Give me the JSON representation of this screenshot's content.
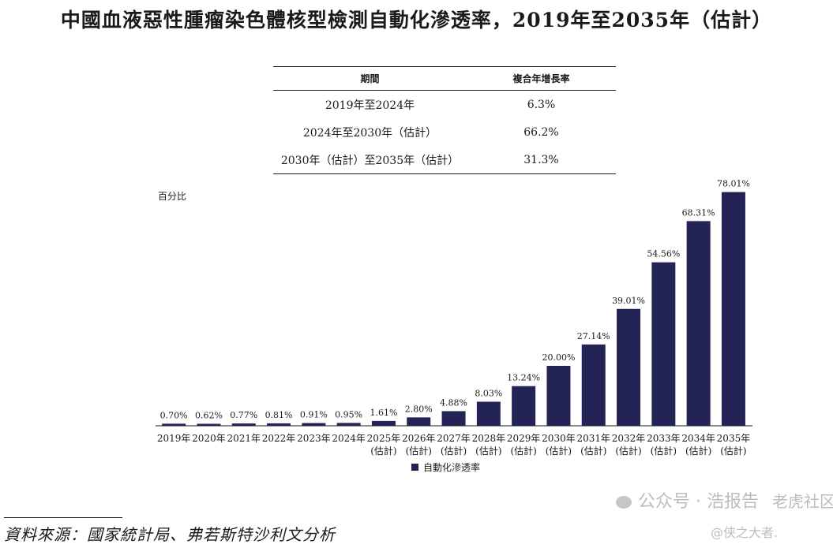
{
  "title": "中國血液惡性腫瘤染色體核型檢測自動化滲透率，2019年至2035年（估計）",
  "cagr_table": {
    "headers": [
      "期間",
      "複合年增長率"
    ],
    "rows": [
      {
        "period": "2019年至2024年",
        "rate": "6.3%"
      },
      {
        "period": "2024年至2030年（估計）",
        "rate": "66.2%"
      },
      {
        "period": "2030年（估計）至2035年（估計）",
        "rate": "31.3%"
      }
    ]
  },
  "chart_data": {
    "type": "bar",
    "ylabel": "百分比",
    "ylim": [
      0,
      100
    ],
    "categories": [
      "2019年",
      "2020年",
      "2021年",
      "2022年",
      "2023年",
      "2024年",
      "2025年 (估計)",
      "2026年 (估計)",
      "2027年 (估計)",
      "2028年 (估計)",
      "2029年 (估計)",
      "2030年 (估計)",
      "2031年 (估計)",
      "2032年 (估計)",
      "2033年 (估計)",
      "2034年 (估計)",
      "2035年 (估計)"
    ],
    "series": [
      {
        "name": "自動化滲透率",
        "color": "#232355",
        "values": [
          0.7,
          0.62,
          0.77,
          0.81,
          0.91,
          0.95,
          1.61,
          2.8,
          4.88,
          8.03,
          13.24,
          20.0,
          27.14,
          39.01,
          54.56,
          68.31,
          78.01
        ],
        "labels": [
          "0.70%",
          "0.62%",
          "0.77%",
          "0.81%",
          "0.91%",
          "0.95%",
          "1.61%",
          "2.80%",
          "4.88%",
          "8.03%",
          "13.24%",
          "20.00%",
          "27.14%",
          "39.01%",
          "54.56%",
          "68.31%",
          "78.01%"
        ]
      }
    ],
    "legend": "bottom-center",
    "grid": false
  },
  "source": "資料來源：國家統計局、弗若斯特沙利文分析",
  "watermark": {
    "account": "公众号 · 浩报告",
    "community": "老虎社区",
    "user": "@侠之大者."
  }
}
